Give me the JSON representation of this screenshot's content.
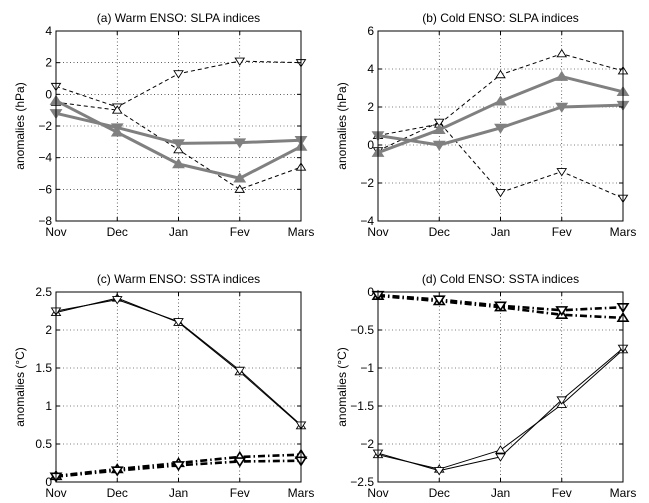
{
  "chart_data": [
    {
      "type": "line",
      "title": "(a) Warm ENSO: SLPA indices",
      "ylabel": "anomalies (hPa)",
      "xlabel": "",
      "categories": [
        "Nov",
        "Dec",
        "Jan",
        "Fev",
        "Mars"
      ],
      "ylim": [
        -8,
        4
      ],
      "yticks": [
        -8,
        -6,
        -4,
        -2,
        0,
        2,
        4
      ],
      "ytick_labels": [
        "−8",
        "−6",
        "−4",
        "−2",
        "0",
        "2",
        "4"
      ],
      "grid": true,
      "series": [
        {
          "style": "dashed-thin",
          "color": "#000000",
          "marker": "triangle-down",
          "values": [
            0.5,
            -0.8,
            1.3,
            2.1,
            2.0
          ]
        },
        {
          "style": "dashed-thin",
          "color": "#000000",
          "marker": "triangle-up",
          "values": [
            -0.5,
            -1.0,
            -3.5,
            -6.0,
            -4.6
          ]
        },
        {
          "style": "solid-thick",
          "color": "#808080",
          "marker": "triangle-down",
          "values": [
            -1.2,
            -2.1,
            -3.1,
            -3.05,
            -2.9
          ]
        },
        {
          "style": "solid-thick",
          "color": "#808080",
          "marker": "triangle-up",
          "values": [
            -0.4,
            -2.4,
            -4.4,
            -5.3,
            -3.3
          ]
        }
      ]
    },
    {
      "type": "line",
      "title": "(b) Cold ENSO: SLPA indices",
      "ylabel": "anomalies (hPa)",
      "xlabel": "",
      "categories": [
        "Nov",
        "Dec",
        "Jan",
        "Fev",
        "Mars"
      ],
      "ylim": [
        -4,
        6
      ],
      "yticks": [
        -4,
        -2,
        0,
        2,
        4,
        6
      ],
      "ytick_labels": [
        "−4",
        "−2",
        "0",
        "2",
        "4",
        "6"
      ],
      "grid": true,
      "series": [
        {
          "style": "dashed-thin",
          "color": "#000000",
          "marker": "triangle-up",
          "values": [
            0.5,
            1.1,
            3.7,
            4.8,
            3.9
          ]
        },
        {
          "style": "dashed-thin",
          "color": "#000000",
          "marker": "triangle-down",
          "values": [
            -0.3,
            1.2,
            -2.5,
            -1.4,
            -2.8
          ]
        },
        {
          "style": "solid-thick",
          "color": "#808080",
          "marker": "triangle-up",
          "values": [
            -0.4,
            0.8,
            2.3,
            3.6,
            2.8
          ]
        },
        {
          "style": "solid-thick",
          "color": "#808080",
          "marker": "triangle-down",
          "values": [
            0.5,
            0.0,
            0.9,
            2.0,
            2.1
          ]
        }
      ]
    },
    {
      "type": "line",
      "title": "(c) Warm ENSO: SSTA indices",
      "ylabel": "anomalies (°C)",
      "xlabel": "",
      "categories": [
        "Nov",
        "Dec",
        "Jan",
        "Fev",
        "Mars"
      ],
      "ylim": [
        0,
        2.5
      ],
      "yticks": [
        0,
        0.5,
        1,
        1.5,
        2,
        2.5
      ],
      "ytick_labels": [
        "0",
        "0.5",
        "1",
        "1.5",
        "2",
        "2.5"
      ],
      "grid": true,
      "series": [
        {
          "style": "solid-thin",
          "color": "#000000",
          "marker": "triangle-up",
          "values": [
            2.23,
            2.42,
            2.1,
            1.45,
            0.74
          ]
        },
        {
          "style": "solid-thin",
          "color": "#000000",
          "marker": "triangle-down",
          "values": [
            2.25,
            2.4,
            2.11,
            1.47,
            0.75
          ]
        },
        {
          "style": "dashdot-thick",
          "color": "#000000",
          "marker": "triangle-up",
          "values": [
            0.08,
            0.17,
            0.25,
            0.33,
            0.36
          ]
        },
        {
          "style": "dashdot-thick",
          "color": "#000000",
          "marker": "triangle-down",
          "values": [
            0.07,
            0.15,
            0.22,
            0.27,
            0.28
          ]
        }
      ]
    },
    {
      "type": "line",
      "title": "(d) Cold ENSO: SSTA indices",
      "ylabel": "anomalies (°C)",
      "xlabel": "",
      "categories": [
        "Nov",
        "Dec",
        "Jan",
        "Fev",
        "Mars"
      ],
      "ylim": [
        -2.5,
        0
      ],
      "yticks": [
        -2.5,
        -2,
        -1.5,
        -1,
        -0.5,
        0
      ],
      "ytick_labels": [
        "−2.5",
        "−2",
        "−1.5",
        "−1",
        "−0.5",
        "0"
      ],
      "grid": true,
      "series": [
        {
          "style": "solid-thin",
          "color": "#000000",
          "marker": "triangle-up",
          "values": [
            -2.14,
            -2.33,
            -2.08,
            -1.48,
            -0.76
          ]
        },
        {
          "style": "solid-thin",
          "color": "#000000",
          "marker": "triangle-down",
          "values": [
            -2.12,
            -2.35,
            -2.17,
            -1.42,
            -0.74
          ]
        },
        {
          "style": "dashdot-thick",
          "color": "#000000",
          "marker": "triangle-up",
          "values": [
            -0.05,
            -0.12,
            -0.2,
            -0.3,
            -0.34
          ]
        },
        {
          "style": "dashdot-thick",
          "color": "#000000",
          "marker": "triangle-down",
          "values": [
            -0.04,
            -0.1,
            -0.18,
            -0.24,
            -0.2
          ]
        }
      ]
    }
  ]
}
